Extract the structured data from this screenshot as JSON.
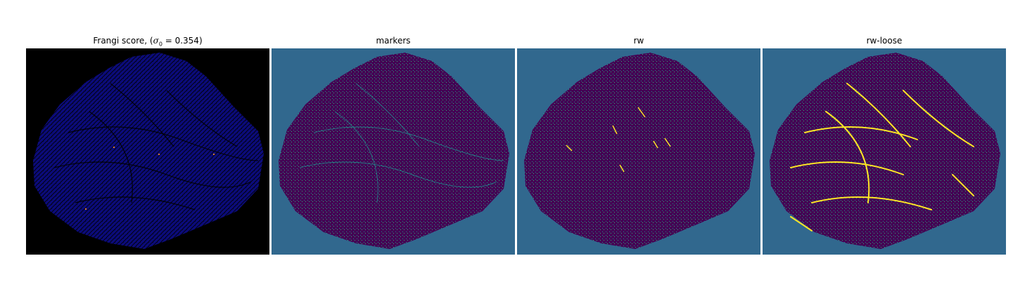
{
  "figure": {
    "panels": [
      {
        "title_prefix": "Frangi score, (",
        "title_math": "σ",
        "title_sub": "0",
        "title_suffix": " = 0.354)"
      },
      {
        "title": "markers"
      },
      {
        "title": "rw"
      },
      {
        "title": "rw-loose"
      }
    ]
  },
  "colors": {
    "frangi_background": "#000000",
    "frangi_fill": "#0b0b7a",
    "marker_background": "#31688e",
    "blob_fill": "#440154",
    "texture_teal": "#21918c",
    "texture_green": "#35b779",
    "highlight_yellow": "#fde725"
  }
}
